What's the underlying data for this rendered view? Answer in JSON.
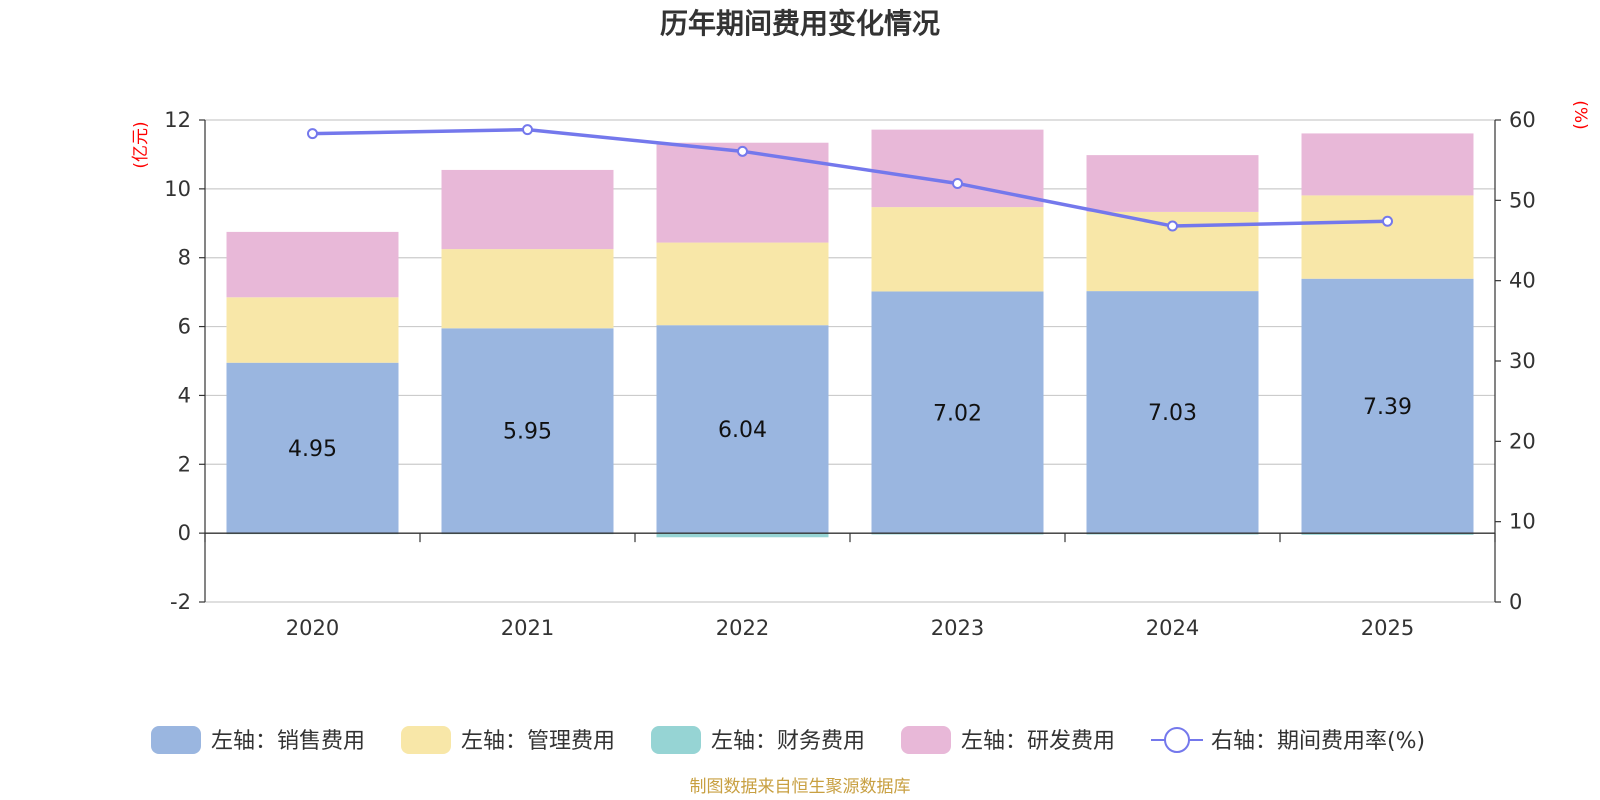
{
  "chart_data": {
    "type": "bar",
    "stacked": true,
    "title": "历年期间费用变化情况",
    "categories": [
      "2020",
      "2021",
      "2022",
      "2023",
      "2024",
      "2025"
    ],
    "left_axis": {
      "unit": "(亿元)",
      "ylim": [
        -2,
        12
      ],
      "ticks": [
        -2,
        0,
        2,
        4,
        6,
        8,
        10,
        12
      ]
    },
    "right_axis": {
      "unit": "(%)",
      "ylim": [
        0,
        60
      ],
      "ticks": [
        0,
        10,
        20,
        30,
        40,
        50,
        60
      ]
    },
    "series": [
      {
        "name": "左轴：销售费用",
        "axis": "left",
        "color": "#9ab6e0",
        "values": [
          4.95,
          5.95,
          6.04,
          7.02,
          7.03,
          7.39
        ],
        "show_labels": true
      },
      {
        "name": "左轴：管理费用",
        "axis": "left",
        "color": "#f8e7a8",
        "values": [
          1.9,
          2.3,
          2.4,
          2.45,
          2.3,
          2.42
        ]
      },
      {
        "name": "左轴：财务费用",
        "axis": "left",
        "color": "#96d4d4",
        "values": [
          -0.02,
          -0.02,
          -0.12,
          -0.04,
          -0.04,
          -0.05
        ]
      },
      {
        "name": "左轴：研发费用",
        "axis": "left",
        "color": "#e8b8d8",
        "values": [
          1.9,
          2.3,
          2.9,
          2.25,
          1.65,
          1.8
        ]
      },
      {
        "name": "右轴：期间费用率(%)",
        "axis": "right",
        "type": "line",
        "color": "#7478ec",
        "values": [
          58.3,
          58.8,
          56.1,
          52.1,
          46.8,
          47.4
        ]
      }
    ],
    "grid": true,
    "legend_position": "bottom"
  },
  "source": "制图数据来自恒生聚源数据库"
}
